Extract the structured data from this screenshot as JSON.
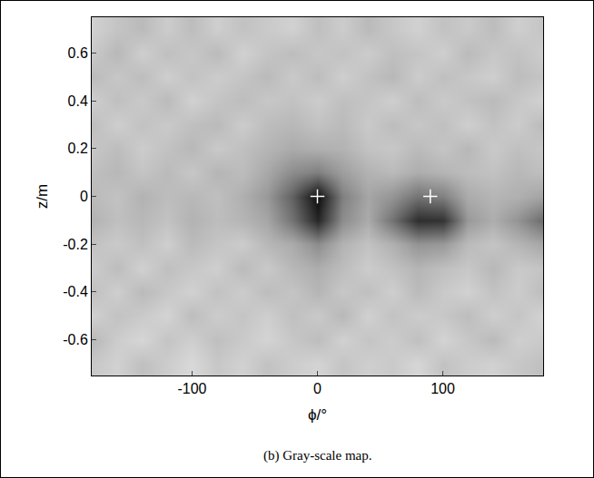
{
  "chart_data": {
    "type": "heatmap",
    "caption": "(b) Gray-scale map.",
    "x_label": "ϕ/°",
    "y_label": "z/m",
    "xlim": [
      -180,
      180
    ],
    "xticks": [
      -100,
      0,
      100
    ],
    "ylim": [
      -0.75,
      0.75
    ],
    "yticks": [
      -0.6,
      -0.4,
      -0.2,
      0,
      0.2,
      0.4,
      0.6
    ],
    "tick_labels": true,
    "grid": false,
    "x": [
      -180,
      -160,
      -140,
      -120,
      -100,
      -80,
      -60,
      -40,
      -20,
      0,
      20,
      40,
      60,
      80,
      100,
      120,
      140,
      160,
      180
    ],
    "y": [
      -0.7,
      -0.6,
      -0.5,
      -0.4,
      -0.3,
      -0.2,
      -0.1,
      0,
      0.1,
      0.2,
      0.3,
      0.4,
      0.5,
      0.6,
      0.7
    ],
    "zlim": [
      0,
      1
    ],
    "z": [
      [
        0.22,
        0.18,
        0.25,
        0.2,
        0.15,
        0.22,
        0.18,
        0.24,
        0.2,
        0.17,
        0.23,
        0.19,
        0.21,
        0.16,
        0.24,
        0.2,
        0.18,
        0.22,
        0.25
      ],
      [
        0.28,
        0.2,
        0.16,
        0.23,
        0.19,
        0.25,
        0.21,
        0.17,
        0.22,
        0.26,
        0.18,
        0.23,
        0.2,
        0.25,
        0.17,
        0.22,
        0.27,
        0.19,
        0.21
      ],
      [
        0.18,
        0.24,
        0.21,
        0.17,
        0.26,
        0.2,
        0.23,
        0.19,
        0.25,
        0.21,
        0.28,
        0.18,
        0.24,
        0.2,
        0.22,
        0.26,
        0.19,
        0.23,
        0.17
      ],
      [
        0.25,
        0.19,
        0.27,
        0.22,
        0.18,
        0.24,
        0.2,
        0.26,
        0.23,
        0.29,
        0.22,
        0.25,
        0.19,
        0.27,
        0.21,
        0.18,
        0.24,
        0.2,
        0.26
      ],
      [
        0.2,
        0.26,
        0.18,
        0.25,
        0.22,
        0.19,
        0.27,
        0.21,
        0.28,
        0.32,
        0.26,
        0.2,
        0.24,
        0.29,
        0.25,
        0.22,
        0.28,
        0.21,
        0.23
      ],
      [
        0.24,
        0.21,
        0.25,
        0.19,
        0.27,
        0.23,
        0.2,
        0.28,
        0.33,
        0.45,
        0.3,
        0.24,
        0.31,
        0.42,
        0.4,
        0.27,
        0.23,
        0.29,
        0.35
      ],
      [
        0.3,
        0.25,
        0.28,
        0.24,
        0.3,
        0.26,
        0.29,
        0.35,
        0.55,
        0.85,
        0.45,
        0.33,
        0.55,
        0.82,
        0.8,
        0.4,
        0.32,
        0.42,
        0.58
      ],
      [
        0.27,
        0.24,
        0.3,
        0.26,
        0.28,
        0.25,
        0.31,
        0.4,
        0.62,
        0.95,
        0.5,
        0.35,
        0.42,
        0.55,
        0.5,
        0.33,
        0.29,
        0.31,
        0.36
      ],
      [
        0.25,
        0.28,
        0.23,
        0.27,
        0.22,
        0.29,
        0.26,
        0.34,
        0.45,
        0.5,
        0.38,
        0.3,
        0.27,
        0.32,
        0.29,
        0.26,
        0.24,
        0.28,
        0.25
      ],
      [
        0.22,
        0.26,
        0.2,
        0.24,
        0.28,
        0.21,
        0.25,
        0.29,
        0.33,
        0.31,
        0.3,
        0.24,
        0.22,
        0.27,
        0.23,
        0.28,
        0.21,
        0.25,
        0.22
      ],
      [
        0.26,
        0.19,
        0.24,
        0.21,
        0.25,
        0.27,
        0.2,
        0.26,
        0.28,
        0.24,
        0.27,
        0.21,
        0.26,
        0.22,
        0.25,
        0.19,
        0.24,
        0.2,
        0.27
      ],
      [
        0.19,
        0.25,
        0.21,
        0.27,
        0.18,
        0.23,
        0.26,
        0.22,
        0.24,
        0.2,
        0.25,
        0.23,
        0.19,
        0.26,
        0.21,
        0.24,
        0.27,
        0.22,
        0.18
      ],
      [
        0.27,
        0.22,
        0.26,
        0.19,
        0.24,
        0.2,
        0.23,
        0.27,
        0.21,
        0.26,
        0.19,
        0.24,
        0.28,
        0.2,
        0.25,
        0.22,
        0.19,
        0.26,
        0.23
      ],
      [
        0.21,
        0.28,
        0.19,
        0.25,
        0.22,
        0.27,
        0.18,
        0.23,
        0.26,
        0.22,
        0.24,
        0.2,
        0.25,
        0.23,
        0.19,
        0.27,
        0.22,
        0.24,
        0.2
      ],
      [
        0.18,
        0.23,
        0.27,
        0.2,
        0.26,
        0.19,
        0.24,
        0.21,
        0.18,
        0.25,
        0.2,
        0.27,
        0.22,
        0.18,
        0.24,
        0.21,
        0.26,
        0.19,
        0.23
      ]
    ],
    "markers": {
      "x": [
        0,
        90
      ],
      "y": [
        0,
        0
      ],
      "marker": "cross",
      "color": "#ffffff"
    }
  }
}
